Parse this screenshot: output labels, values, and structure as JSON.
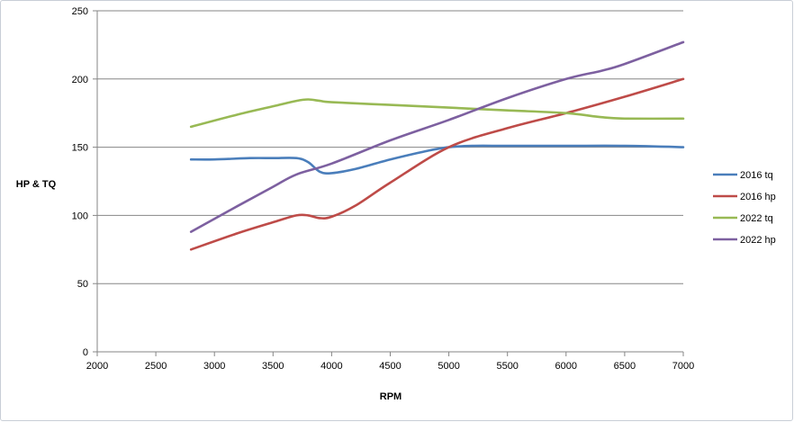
{
  "chart_data": {
    "type": "line",
    "title": "",
    "xlabel": "RPM",
    "ylabel": "HP & TQ",
    "xlim": [
      2000,
      7000
    ],
    "ylim": [
      0,
      250
    ],
    "xticks": [
      2000,
      2500,
      3000,
      3500,
      4000,
      4500,
      5000,
      5500,
      6000,
      6500,
      7000
    ],
    "yticks": [
      0,
      50,
      100,
      150,
      200,
      250
    ],
    "grid": "horizontal",
    "legend_position": "right",
    "series": [
      {
        "name": "2016 tq",
        "color": "#4a7ebb",
        "points": [
          [
            2800,
            141
          ],
          [
            3000,
            141
          ],
          [
            3300,
            142
          ],
          [
            3500,
            142
          ],
          [
            3700,
            142
          ],
          [
            3800,
            139
          ],
          [
            3900,
            132
          ],
          [
            4000,
            131
          ],
          [
            4200,
            134
          ],
          [
            4500,
            141
          ],
          [
            4800,
            147
          ],
          [
            5000,
            150
          ],
          [
            5200,
            151
          ],
          [
            5500,
            151
          ],
          [
            6000,
            151
          ],
          [
            6500,
            151
          ],
          [
            7000,
            150
          ]
        ]
      },
      {
        "name": "2016 hp",
        "color": "#be4b48",
        "points": [
          [
            2800,
            75
          ],
          [
            3200,
            87
          ],
          [
            3500,
            95
          ],
          [
            3700,
            100
          ],
          [
            3800,
            100
          ],
          [
            3900,
            98
          ],
          [
            4000,
            99
          ],
          [
            4200,
            107
          ],
          [
            4500,
            124
          ],
          [
            5000,
            150
          ],
          [
            5500,
            164
          ],
          [
            6000,
            175
          ],
          [
            6500,
            187
          ],
          [
            7000,
            200
          ]
        ]
      },
      {
        "name": "2022 tq",
        "color": "#98b954",
        "points": [
          [
            2800,
            165
          ],
          [
            3200,
            174
          ],
          [
            3500,
            180
          ],
          [
            3700,
            184
          ],
          [
            3800,
            185
          ],
          [
            3900,
            184
          ],
          [
            4000,
            183
          ],
          [
            4500,
            181
          ],
          [
            5000,
            179
          ],
          [
            5500,
            177
          ],
          [
            6000,
            175
          ],
          [
            6300,
            172
          ],
          [
            6500,
            171
          ],
          [
            7000,
            171
          ]
        ]
      },
      {
        "name": "2022 hp",
        "color": "#7d60a0",
        "points": [
          [
            2800,
            88
          ],
          [
            3200,
            107
          ],
          [
            3500,
            121
          ],
          [
            3700,
            130
          ],
          [
            4000,
            138
          ],
          [
            4500,
            155
          ],
          [
            5000,
            170
          ],
          [
            5500,
            186
          ],
          [
            6000,
            200
          ],
          [
            6300,
            206
          ],
          [
            6500,
            211
          ],
          [
            7000,
            227
          ]
        ]
      }
    ]
  }
}
